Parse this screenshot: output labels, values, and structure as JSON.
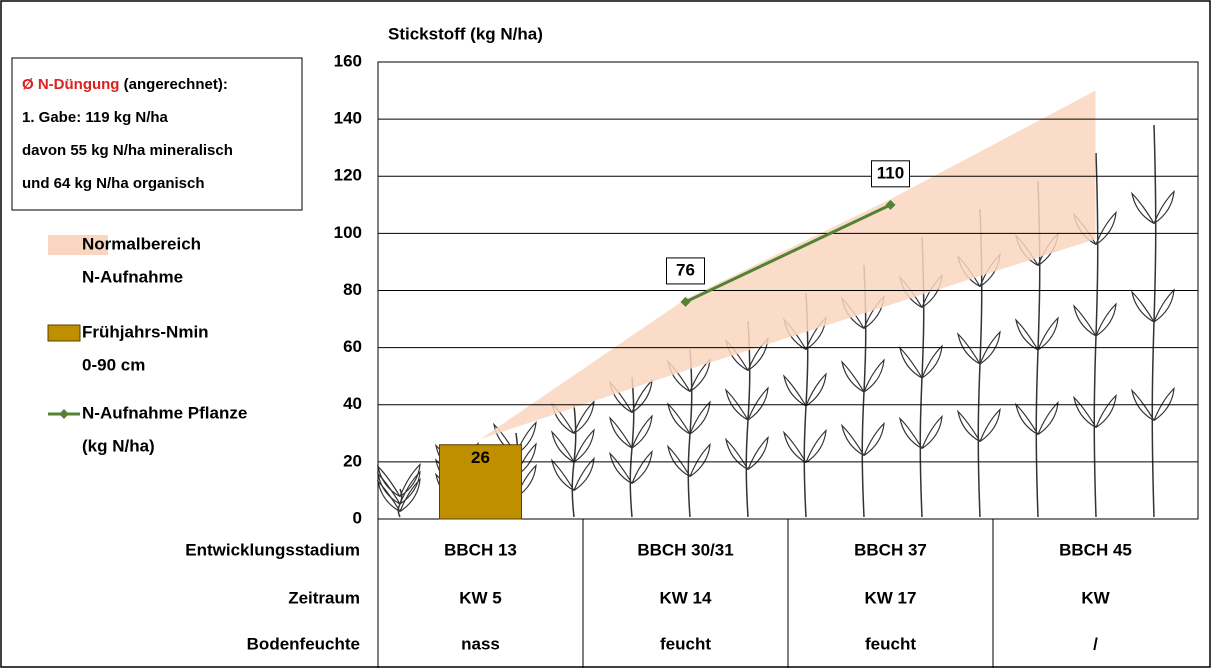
{
  "chart_data": {
    "type": "combo",
    "title": "Stickstoff (kg N/ha)",
    "xlabel": "Entwicklungsstadium",
    "categories": [
      "BBCH 13",
      "BBCH 30/31",
      "BBCH 37",
      "BBCH 45"
    ],
    "ylim": [
      0,
      160
    ],
    "yticks": [
      0,
      20,
      40,
      60,
      80,
      100,
      120,
      140,
      160
    ],
    "grid": true,
    "series": [
      {
        "name": [
          "Normalbereich",
          "N-Aufnahme"
        ],
        "type": "range",
        "color": "#f9d6c0",
        "lower": [
          28,
          52,
          75,
          98
        ],
        "upper": [
          28,
          77,
          112,
          150
        ]
      },
      {
        "name": [
          "Frühjahrs-Nmin",
          "0-90 cm"
        ],
        "type": "bar",
        "color": "#bf8f00",
        "values": [
          26,
          null,
          null,
          null
        ]
      },
      {
        "name": [
          "N-Aufnahme Pflanze",
          "(kg N/ha)"
        ],
        "type": "line",
        "color": "#548235",
        "values": [
          null,
          76,
          110,
          null
        ]
      }
    ],
    "rows": [
      {
        "label": "Zeitraum",
        "cells": [
          "KW 5",
          "KW 14",
          "KW 17",
          "KW"
        ]
      },
      {
        "label": "Bodenfeuchte",
        "cells": [
          "nass",
          "feucht",
          "feucht",
          "/"
        ]
      }
    ],
    "annotation": {
      "title_red": "Ø N-Düngung",
      "title_rest": "(angerechnet):",
      "lines": [
        "1. Gabe: 119 kg N/ha",
        "davon 55 kg N/ha mineralisch",
        "und 64 kg N/ha organisch"
      ]
    }
  }
}
